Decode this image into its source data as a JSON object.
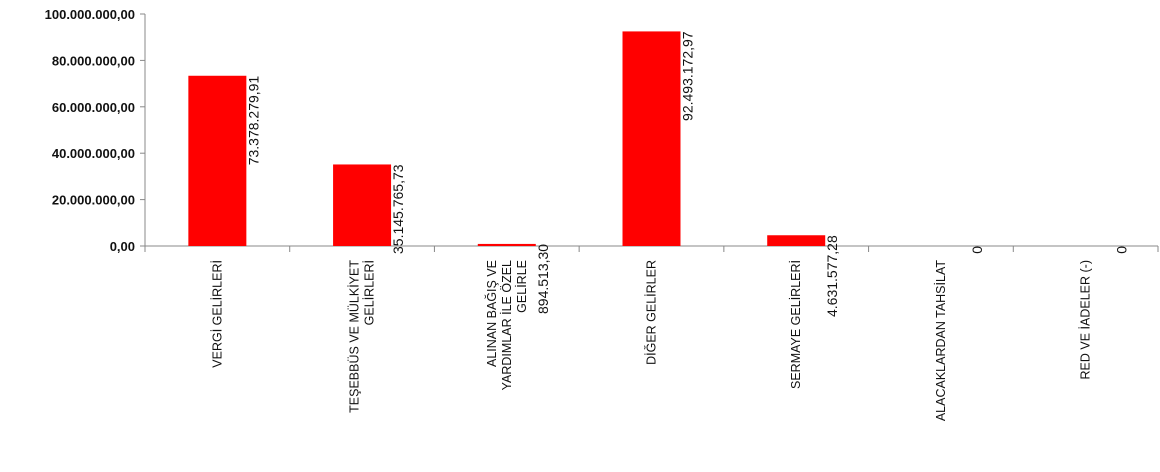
{
  "chart_data": {
    "type": "bar",
    "categories": [
      [
        "VERGİ GELİRLERİ"
      ],
      [
        "TEŞEBBÜS VE MÜLKİYET",
        "GELİRLERİ"
      ],
      [
        "ALINAN BAĞIŞ VE",
        "YARDIMLAR İLE ÖZEL",
        "GELİRLE"
      ],
      [
        "DİĞER GELİRLER"
      ],
      [
        "SERMAYE GELİRLERİ"
      ],
      [
        "ALACAKLARDAN TAHSİLAT"
      ],
      [
        "RED VE İADELER (-)"
      ]
    ],
    "values": [
      73378279.91,
      35145765.73,
      894513.3,
      92493172.97,
      4631577.28,
      0,
      0
    ],
    "data_labels": [
      "73.378.279,91",
      "35.145.765,73",
      "894.513,30",
      "92.493.172,97",
      "4.631.577,28",
      "0",
      "0"
    ],
    "yticks": [
      "0,00",
      "20.000.000,00",
      "40.000.000,00",
      "60.000.000,00",
      "80.000.000,00",
      "100.000.000,00"
    ],
    "ytick_values": [
      0,
      20000000,
      40000000,
      60000000,
      80000000,
      100000000
    ],
    "ylim": [
      0,
      100000000
    ],
    "bar_color": "#ff0000",
    "grid": false,
    "legend": "none"
  }
}
